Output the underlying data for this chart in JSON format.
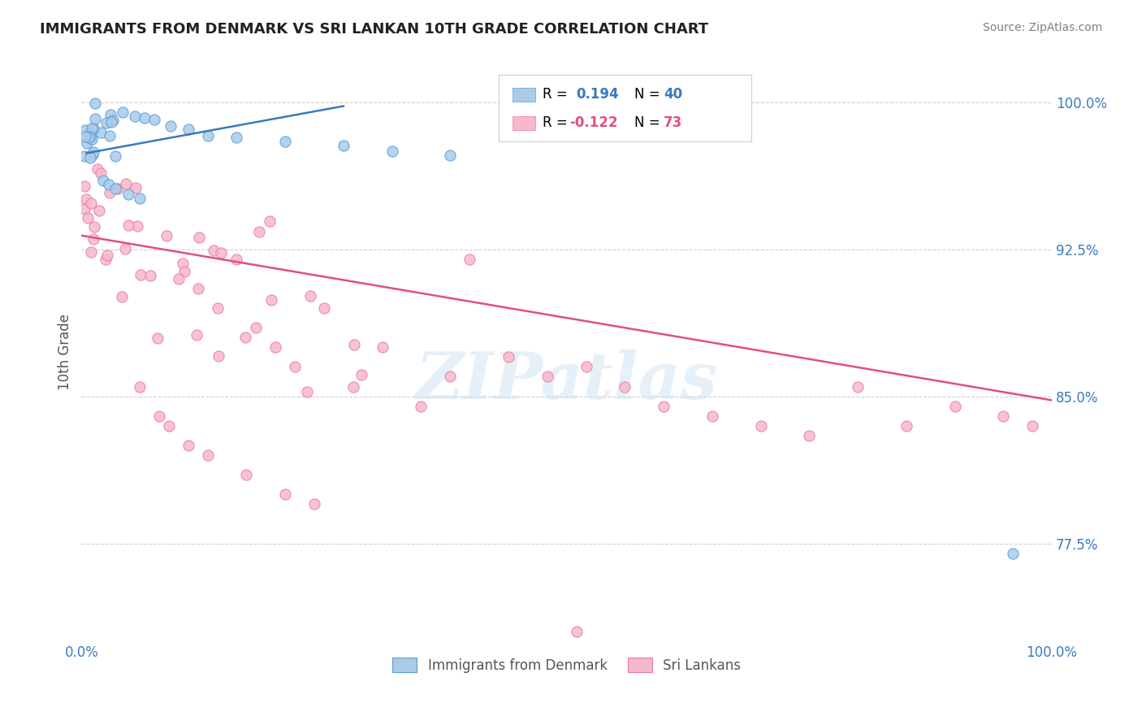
{
  "title": "IMMIGRANTS FROM DENMARK VS SRI LANKAN 10TH GRADE CORRELATION CHART",
  "source": "Source: ZipAtlas.com",
  "ylabel": "10th Grade",
  "x_min": 0.0,
  "x_max": 1.0,
  "y_min": 0.725,
  "y_max": 1.02,
  "y_ticks": [
    0.775,
    0.85,
    0.925,
    1.0
  ],
  "y_tick_labels": [
    "77.5%",
    "85.0%",
    "92.5%",
    "100.0%"
  ],
  "denmark_color": "#a8cce8",
  "denmark_edge": "#5b9bd5",
  "srilanka_color": "#f7b8cc",
  "srilanka_edge": "#e87da0",
  "trend_blue": "#3a7abf",
  "trend_pink": "#e05080",
  "legend_R_denmark": "R =  0.194",
  "legend_N_denmark": "N = 40",
  "legend_R_srilanka": "R = -0.122",
  "legend_N_srilanka": "N = 73",
  "watermark": "ZIPatlas",
  "background_color": "#ffffff",
  "grid_color": "#cccccc",
  "title_color": "#222222",
  "axis_label_color": "#555555",
  "right_axis_color": "#3a7abf",
  "bottom_axis_label_color": "#3a7abf",
  "legend_text_color": "#3a7abf",
  "legend_value_color": "#e05080"
}
